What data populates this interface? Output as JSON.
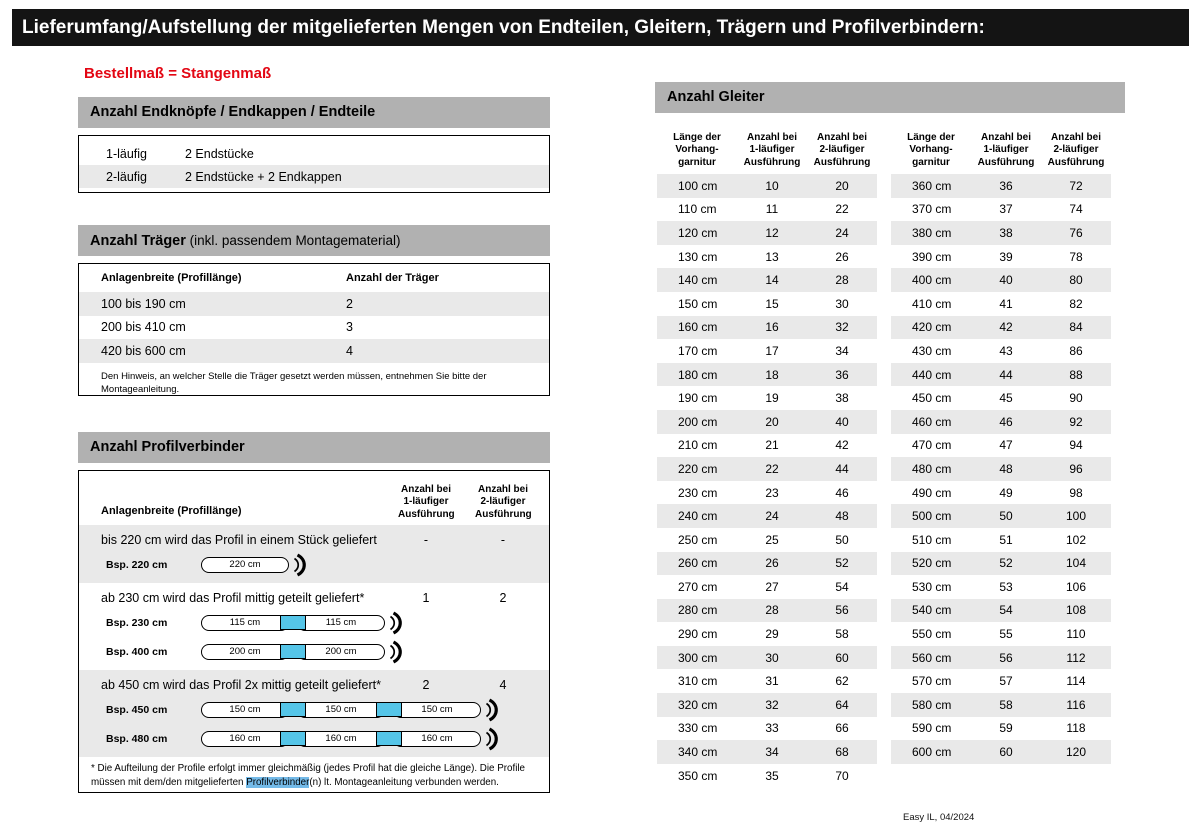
{
  "page": {
    "title": "Lieferumfang/Aufstellung der mitgelieferten Mengen von Endteilen, Gleitern, Trägern und Profilverbindern:",
    "subtitle": "Bestellmaß = Stangenmaß",
    "footer": "Easy IL, 04/2024"
  },
  "colors": {
    "title_bar": "#141414",
    "section_bar": "#b1b1b1",
    "row_stripe": "#e9e9e9",
    "accent_red": "#e30613",
    "connector_cyan": "#55c5e8",
    "text_highlight": "#74bae8"
  },
  "endteile": {
    "header": "Anzahl Endknöpfe / Endkappen / Endteile",
    "rows": [
      {
        "label": "1-läufig",
        "value": "2 Endstücke"
      },
      {
        "label": "2-läufig",
        "value": "2 Endstücke + 2 Endkappen"
      }
    ]
  },
  "traeger": {
    "header_bold": "Anzahl Träger",
    "header_normal": " (inkl. passendem Montagematerial)",
    "col1": "Anlagenbreite (Profillänge)",
    "col2": "Anzahl der Träger",
    "rows": [
      {
        "range": "100 bis 190 cm",
        "count": "2"
      },
      {
        "range": "200 bis 410 cm",
        "count": "3"
      },
      {
        "range": "420 bis 600 cm",
        "count": "4"
      }
    ],
    "note": "Den Hinweis, an welcher Stelle die Träger gesetzt werden müssen, entnehmen Sie bitte der Montageanleitung."
  },
  "profilverbinder": {
    "header": "Anzahl Profilverbinder",
    "col1": "Anlagenbreite (Profillänge)",
    "col2": "Anzahl bei\n1-läufiger\nAusführung",
    "col3": "Anzahl bei\n2-läufiger\nAusführung",
    "sections": [
      {
        "text": "bis 220 cm wird das Profil in einem Stück geliefert",
        "count1": "-",
        "count2": "-",
        "examples": [
          {
            "label": "Bsp. 220 cm",
            "segments": [
              "220 cm"
            ]
          }
        ]
      },
      {
        "text": "ab 230 cm wird das Profil mittig geteilt geliefert*",
        "count1": "1",
        "count2": "2",
        "examples": [
          {
            "label": "Bsp. 230 cm",
            "segments": [
              "115 cm",
              "115 cm"
            ]
          },
          {
            "label": "Bsp. 400 cm",
            "segments": [
              "200 cm",
              "200 cm"
            ]
          }
        ]
      },
      {
        "text": "ab 450 cm wird das Profil 2x mittig geteilt geliefert*",
        "count1": "2",
        "count2": "4",
        "examples": [
          {
            "label": "Bsp. 450 cm",
            "segments": [
              "150 cm",
              "150 cm",
              "150 cm"
            ]
          },
          {
            "label": "Bsp. 480 cm",
            "segments": [
              "160 cm",
              "160 cm",
              "160 cm"
            ]
          }
        ]
      }
    ],
    "footnote_pre": "* Die Aufteilung der Profile erfolgt immer gleichmäßig (jedes Profil hat die gleiche Länge). Die Profile müssen mit dem/den mitgelieferten ",
    "footnote_highlight": "Profilverbinder",
    "footnote_post": "(n) lt. Montageanleitung verbunden werden."
  },
  "gleiter": {
    "header": "Anzahl Gleiter",
    "col1": "Länge der\nVorhang-\ngarnitur",
    "col2": "Anzahl bei\n1-läufiger\nAusführung",
    "col3": "Anzahl bei\n2-läufiger\nAusführung",
    "table1": [
      [
        "100 cm",
        "10",
        "20"
      ],
      [
        "110 cm",
        "11",
        "22"
      ],
      [
        "120 cm",
        "12",
        "24"
      ],
      [
        "130 cm",
        "13",
        "26"
      ],
      [
        "140 cm",
        "14",
        "28"
      ],
      [
        "150 cm",
        "15",
        "30"
      ],
      [
        "160 cm",
        "16",
        "32"
      ],
      [
        "170 cm",
        "17",
        "34"
      ],
      [
        "180 cm",
        "18",
        "36"
      ],
      [
        "190 cm",
        "19",
        "38"
      ],
      [
        "200 cm",
        "20",
        "40"
      ],
      [
        "210 cm",
        "21",
        "42"
      ],
      [
        "220 cm",
        "22",
        "44"
      ],
      [
        "230 cm",
        "23",
        "46"
      ],
      [
        "240 cm",
        "24",
        "48"
      ],
      [
        "250 cm",
        "25",
        "50"
      ],
      [
        "260 cm",
        "26",
        "52"
      ],
      [
        "270 cm",
        "27",
        "54"
      ],
      [
        "280 cm",
        "28",
        "56"
      ],
      [
        "290 cm",
        "29",
        "58"
      ],
      [
        "300 cm",
        "30",
        "60"
      ],
      [
        "310 cm",
        "31",
        "62"
      ],
      [
        "320 cm",
        "32",
        "64"
      ],
      [
        "330 cm",
        "33",
        "66"
      ],
      [
        "340 cm",
        "34",
        "68"
      ],
      [
        "350 cm",
        "35",
        "70"
      ]
    ],
    "table2": [
      [
        "360 cm",
        "36",
        "72"
      ],
      [
        "370 cm",
        "37",
        "74"
      ],
      [
        "380 cm",
        "38",
        "76"
      ],
      [
        "390 cm",
        "39",
        "78"
      ],
      [
        "400 cm",
        "40",
        "80"
      ],
      [
        "410 cm",
        "41",
        "82"
      ],
      [
        "420 cm",
        "42",
        "84"
      ],
      [
        "430 cm",
        "43",
        "86"
      ],
      [
        "440 cm",
        "44",
        "88"
      ],
      [
        "450 cm",
        "45",
        "90"
      ],
      [
        "460 cm",
        "46",
        "92"
      ],
      [
        "470 cm",
        "47",
        "94"
      ],
      [
        "480 cm",
        "48",
        "96"
      ],
      [
        "490 cm",
        "49",
        "98"
      ],
      [
        "500 cm",
        "50",
        "100"
      ],
      [
        "510 cm",
        "51",
        "102"
      ],
      [
        "520 cm",
        "52",
        "104"
      ],
      [
        "530 cm",
        "53",
        "106"
      ],
      [
        "540 cm",
        "54",
        "108"
      ],
      [
        "550 cm",
        "55",
        "110"
      ],
      [
        "560 cm",
        "56",
        "112"
      ],
      [
        "570 cm",
        "57",
        "114"
      ],
      [
        "580 cm",
        "58",
        "116"
      ],
      [
        "590 cm",
        "59",
        "118"
      ],
      [
        "600 cm",
        "60",
        "120"
      ]
    ]
  }
}
